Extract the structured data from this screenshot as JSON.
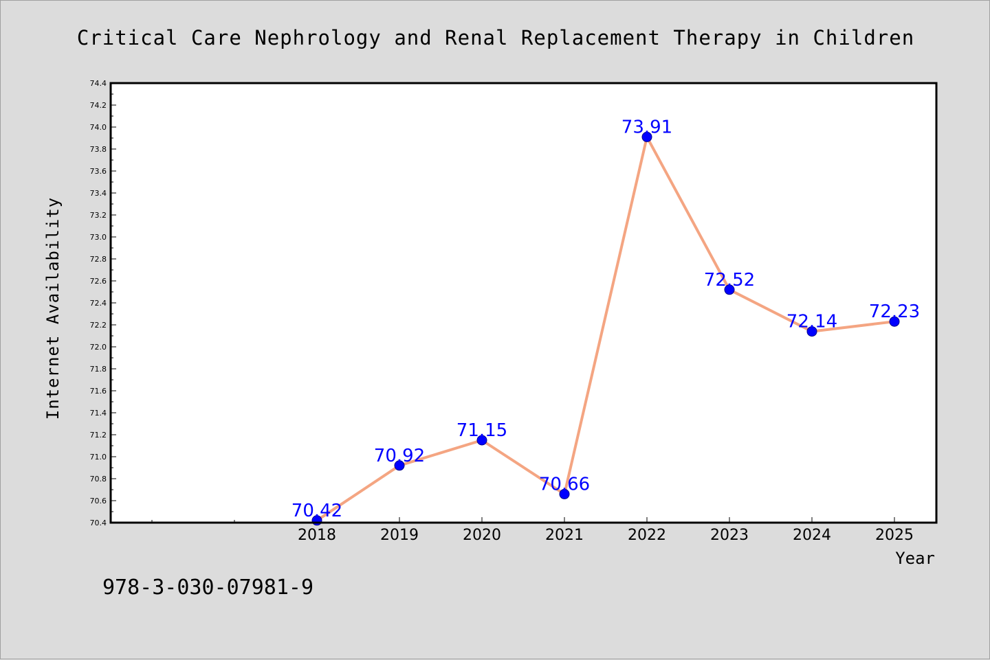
{
  "chart_data": {
    "type": "line",
    "title": "Critical Care Nephrology and Renal Replacement Therapy in Children",
    "xlabel": "Year",
    "ylabel": "Internet Availability",
    "categories": [
      "2018",
      "2019",
      "2020",
      "2021",
      "2022",
      "2023",
      "2024",
      "2025"
    ],
    "values": [
      70.42,
      70.92,
      71.15,
      70.66,
      73.91,
      72.52,
      72.14,
      72.23
    ],
    "data_labels": [
      "70.42",
      "70.92",
      "71.15",
      "70.66",
      "73.91",
      "72.52",
      "72.14",
      "72.23"
    ],
    "ylim": [
      70.4,
      74.4
    ],
    "yticks": [
      "70.4",
      "70.6",
      "70.8",
      "71.0",
      "71.2",
      "71.4",
      "71.6",
      "71.8",
      "72.0",
      "72.2",
      "72.4",
      "72.6",
      "72.8",
      "73.0",
      "73.2",
      "73.4",
      "73.6",
      "73.8",
      "74.0",
      "74.2",
      "74.4"
    ],
    "grid": false,
    "line_color": "#f4a582",
    "marker_color": "#0000ff",
    "label_color": "#0000ff"
  },
  "footer": {
    "isbn": "978-3-030-07981-9"
  }
}
